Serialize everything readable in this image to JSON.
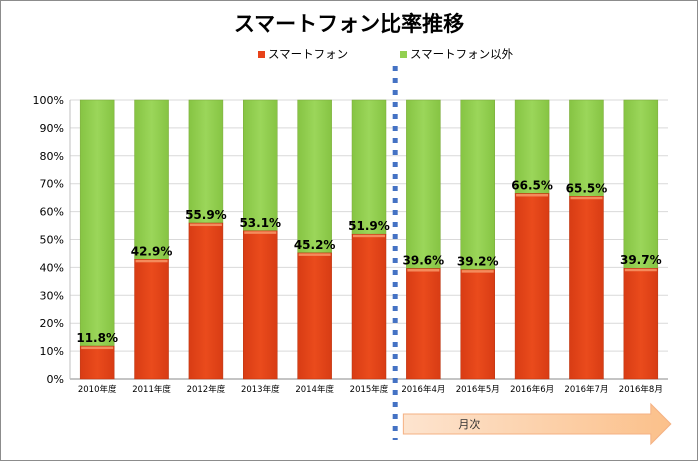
{
  "chart_data": {
    "type": "bar",
    "stacked": true,
    "percent_stacked": true,
    "title": "スマートフォン比率推移",
    "xlabel": "",
    "ylabel": "",
    "ylim": [
      0,
      100
    ],
    "yticks": [
      "0%",
      "10%",
      "20%",
      "30%",
      "40%",
      "50%",
      "60%",
      "70%",
      "80%",
      "90%",
      "100%"
    ],
    "grid": true,
    "legend_position": "top",
    "categories": [
      "2010年度",
      "2011年度",
      "2012年度",
      "2013年度",
      "2014年度",
      "2015年度",
      "2016年4月",
      "2016年5月",
      "2016年6月",
      "2016年7月",
      "2016年8月"
    ],
    "series": [
      {
        "name": "スマートフォン",
        "color": "#e8431a",
        "values": [
          11.8,
          42.9,
          55.9,
          53.1,
          45.2,
          51.9,
          39.6,
          39.2,
          66.5,
          65.5,
          39.7
        ]
      },
      {
        "name": "スマートフォン以外",
        "color": "#92d050",
        "values": [
          88.2,
          57.1,
          44.1,
          46.9,
          54.8,
          48.1,
          60.4,
          60.8,
          33.5,
          34.5,
          60.3
        ]
      }
    ],
    "data_labels": [
      "11.8%",
      "42.9%",
      "55.9%",
      "53.1%",
      "45.2%",
      "51.9%",
      "39.6%",
      "39.2%",
      "66.5%",
      "65.5%",
      "39.7%"
    ],
    "annotations": {
      "divider": {
        "after_category": "2015年度",
        "style": "dotted",
        "color": "#4472c4"
      },
      "arrow": {
        "label": "月次",
        "from_category": "2016年4月",
        "to_category": "2016年8月",
        "color": "#fcd5b4"
      }
    }
  },
  "legend": {
    "items": [
      {
        "label": "スマートフォン",
        "color": "#e8431a"
      },
      {
        "label": "スマートフォン以外",
        "color": "#92d050"
      }
    ]
  }
}
